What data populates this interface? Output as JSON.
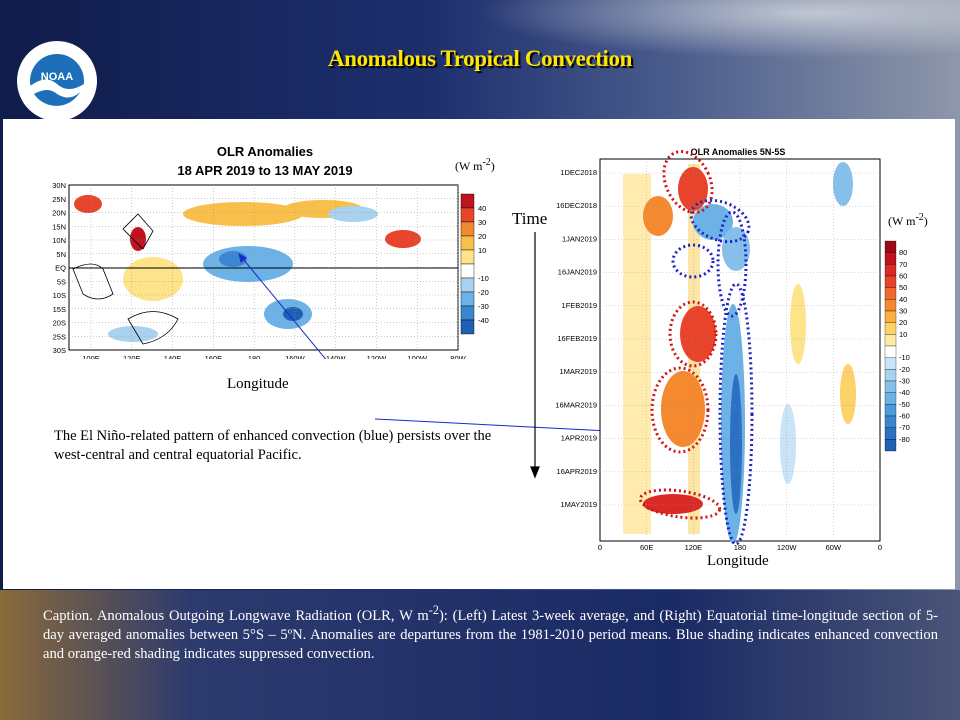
{
  "slide": {
    "title": "Anomalous Tropical Convection",
    "logo_text": "NOAA",
    "logo_ring_text": "NATIONAL OCEANIC AND ATMOSPHERIC ADMINISTRATION • U.S. DEPARTMENT OF COMMERCE",
    "units_left": "(W m",
    "units_right": "(W m",
    "units_sup": "-2",
    "units_close": ")",
    "time_label": "Time",
    "longitude_left": "Longitude",
    "longitude_right": "Longitude",
    "annotation": "The El Niño-related pattern of enhanced convection (blue) persists over the west-central and central equatorial Pacific.",
    "caption_pre": "Caption. Anomalous Outgoing Longwave Radiation (OLR, W m",
    "caption_sup": "-2",
    "caption_post": "): (Left) Latest 3-week average, and (Right) Equatorial time-longitude section of 5-day averaged anomalies between 5°S – 5ºN. Anomalies are departures from the 1981-2010 period means. Blue shading indicates enhanced convection and orange-red shading indicates suppressed convection."
  },
  "map_chart": {
    "title": "OLR Anomalies",
    "subtitle": "18 APR 2019 to 13 MAY 2019",
    "lat_labels": [
      "30N",
      "25N",
      "20N",
      "15N",
      "10N",
      "5N",
      "EQ",
      "5S",
      "10S",
      "15S",
      "20S",
      "25S",
      "30S"
    ],
    "lon_labels": [
      "100E",
      "120E",
      "140E",
      "160E",
      "180",
      "160W",
      "140W",
      "120W",
      "100W",
      "80W"
    ],
    "colorbar_labels": [
      "40",
      "30",
      "20",
      "10",
      "-10",
      "-20",
      "-30",
      "-40"
    ],
    "colorbar_colors": [
      "#c1121f",
      "#e8432b",
      "#f08a2c",
      "#f8c04a",
      "#fde38a",
      "#ffffff",
      "#a9d2ef",
      "#6cb2e6",
      "#3a86d1",
      "#1f5fb6"
    ]
  },
  "hovmoller_chart": {
    "title": "OLR Anomalies 5N-5S",
    "date_labels": [
      "1DEC2018",
      "16DEC2018",
      "1JAN2019",
      "16JAN2019",
      "1FEB2019",
      "16FEB2019",
      "1MAR2019",
      "16MAR2019",
      "1APR2019",
      "16APR2019",
      "1MAY2019"
    ],
    "lon_labels": [
      "0",
      "60E",
      "120E",
      "180",
      "120W",
      "60W",
      "0"
    ],
    "colorbar_labels": [
      "80",
      "70",
      "60",
      "50",
      "40",
      "30",
      "20",
      "10",
      "-10",
      "-20",
      "-30",
      "-40",
      "-50",
      "-60",
      "-70",
      "-80"
    ],
    "colorbar_colors": [
      "#9c0a17",
      "#c1121f",
      "#d92a26",
      "#e8432b",
      "#f06a2e",
      "#f4892f",
      "#f8b040",
      "#fcd36a",
      "#fdeaa5",
      "#ffffff",
      "#c9e4f6",
      "#a9d2ef",
      "#86bfe9",
      "#6cb2e6",
      "#4c9bdc",
      "#3a86d1",
      "#2c70c3",
      "#1f5fb6"
    ]
  }
}
